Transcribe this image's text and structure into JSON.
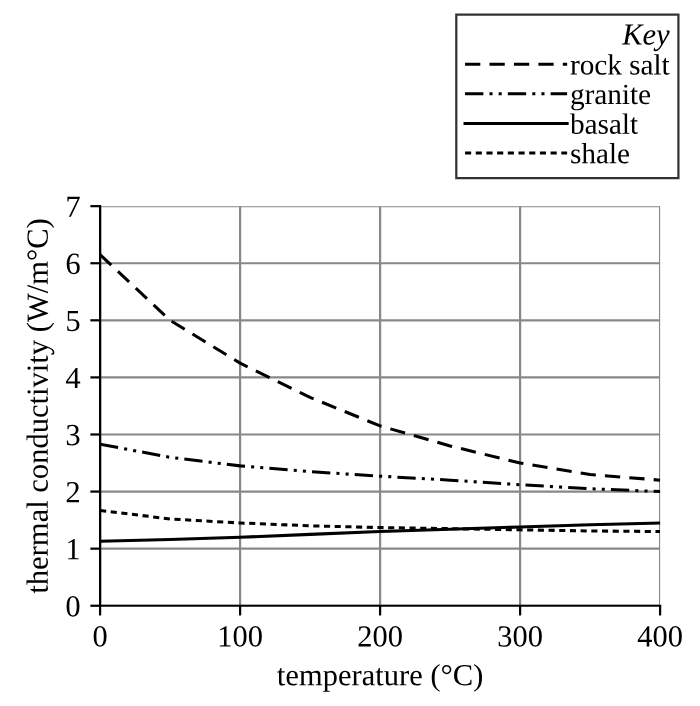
{
  "chart_data": {
    "type": "line",
    "xlabel": "temperature (°C)",
    "ylabel": "thermal conductivity (W/m°C)",
    "legend_title": "Key",
    "x": [
      0,
      50,
      100,
      150,
      200,
      250,
      300,
      350,
      400
    ],
    "series": [
      {
        "name": "rock salt",
        "color": "#000000",
        "line_style": "dashed",
        "values": [
          6.15,
          5.0,
          4.25,
          3.65,
          3.15,
          2.8,
          2.5,
          2.3,
          2.2
        ]
      },
      {
        "name": "granite",
        "color": "#000000",
        "line_style": "dashdot",
        "values": [
          2.83,
          2.6,
          2.45,
          2.35,
          2.27,
          2.2,
          2.12,
          2.05,
          2.0
        ]
      },
      {
        "name": "basalt",
        "color": "#000000",
        "line_style": "solid",
        "values": [
          1.13,
          1.16,
          1.2,
          1.25,
          1.3,
          1.34,
          1.38,
          1.42,
          1.45
        ]
      },
      {
        "name": "shale",
        "color": "#000000",
        "line_style": "dotted",
        "values": [
          1.67,
          1.52,
          1.45,
          1.4,
          1.37,
          1.35,
          1.33,
          1.31,
          1.3
        ]
      }
    ],
    "xlim": [
      0,
      400
    ],
    "ylim": [
      0,
      7
    ],
    "xticks": [
      0,
      100,
      200,
      300,
      400
    ],
    "yticks": [
      0,
      1,
      2,
      3,
      4,
      5,
      6,
      7
    ],
    "grid": true,
    "legend": "top right",
    "marker": "none"
  }
}
